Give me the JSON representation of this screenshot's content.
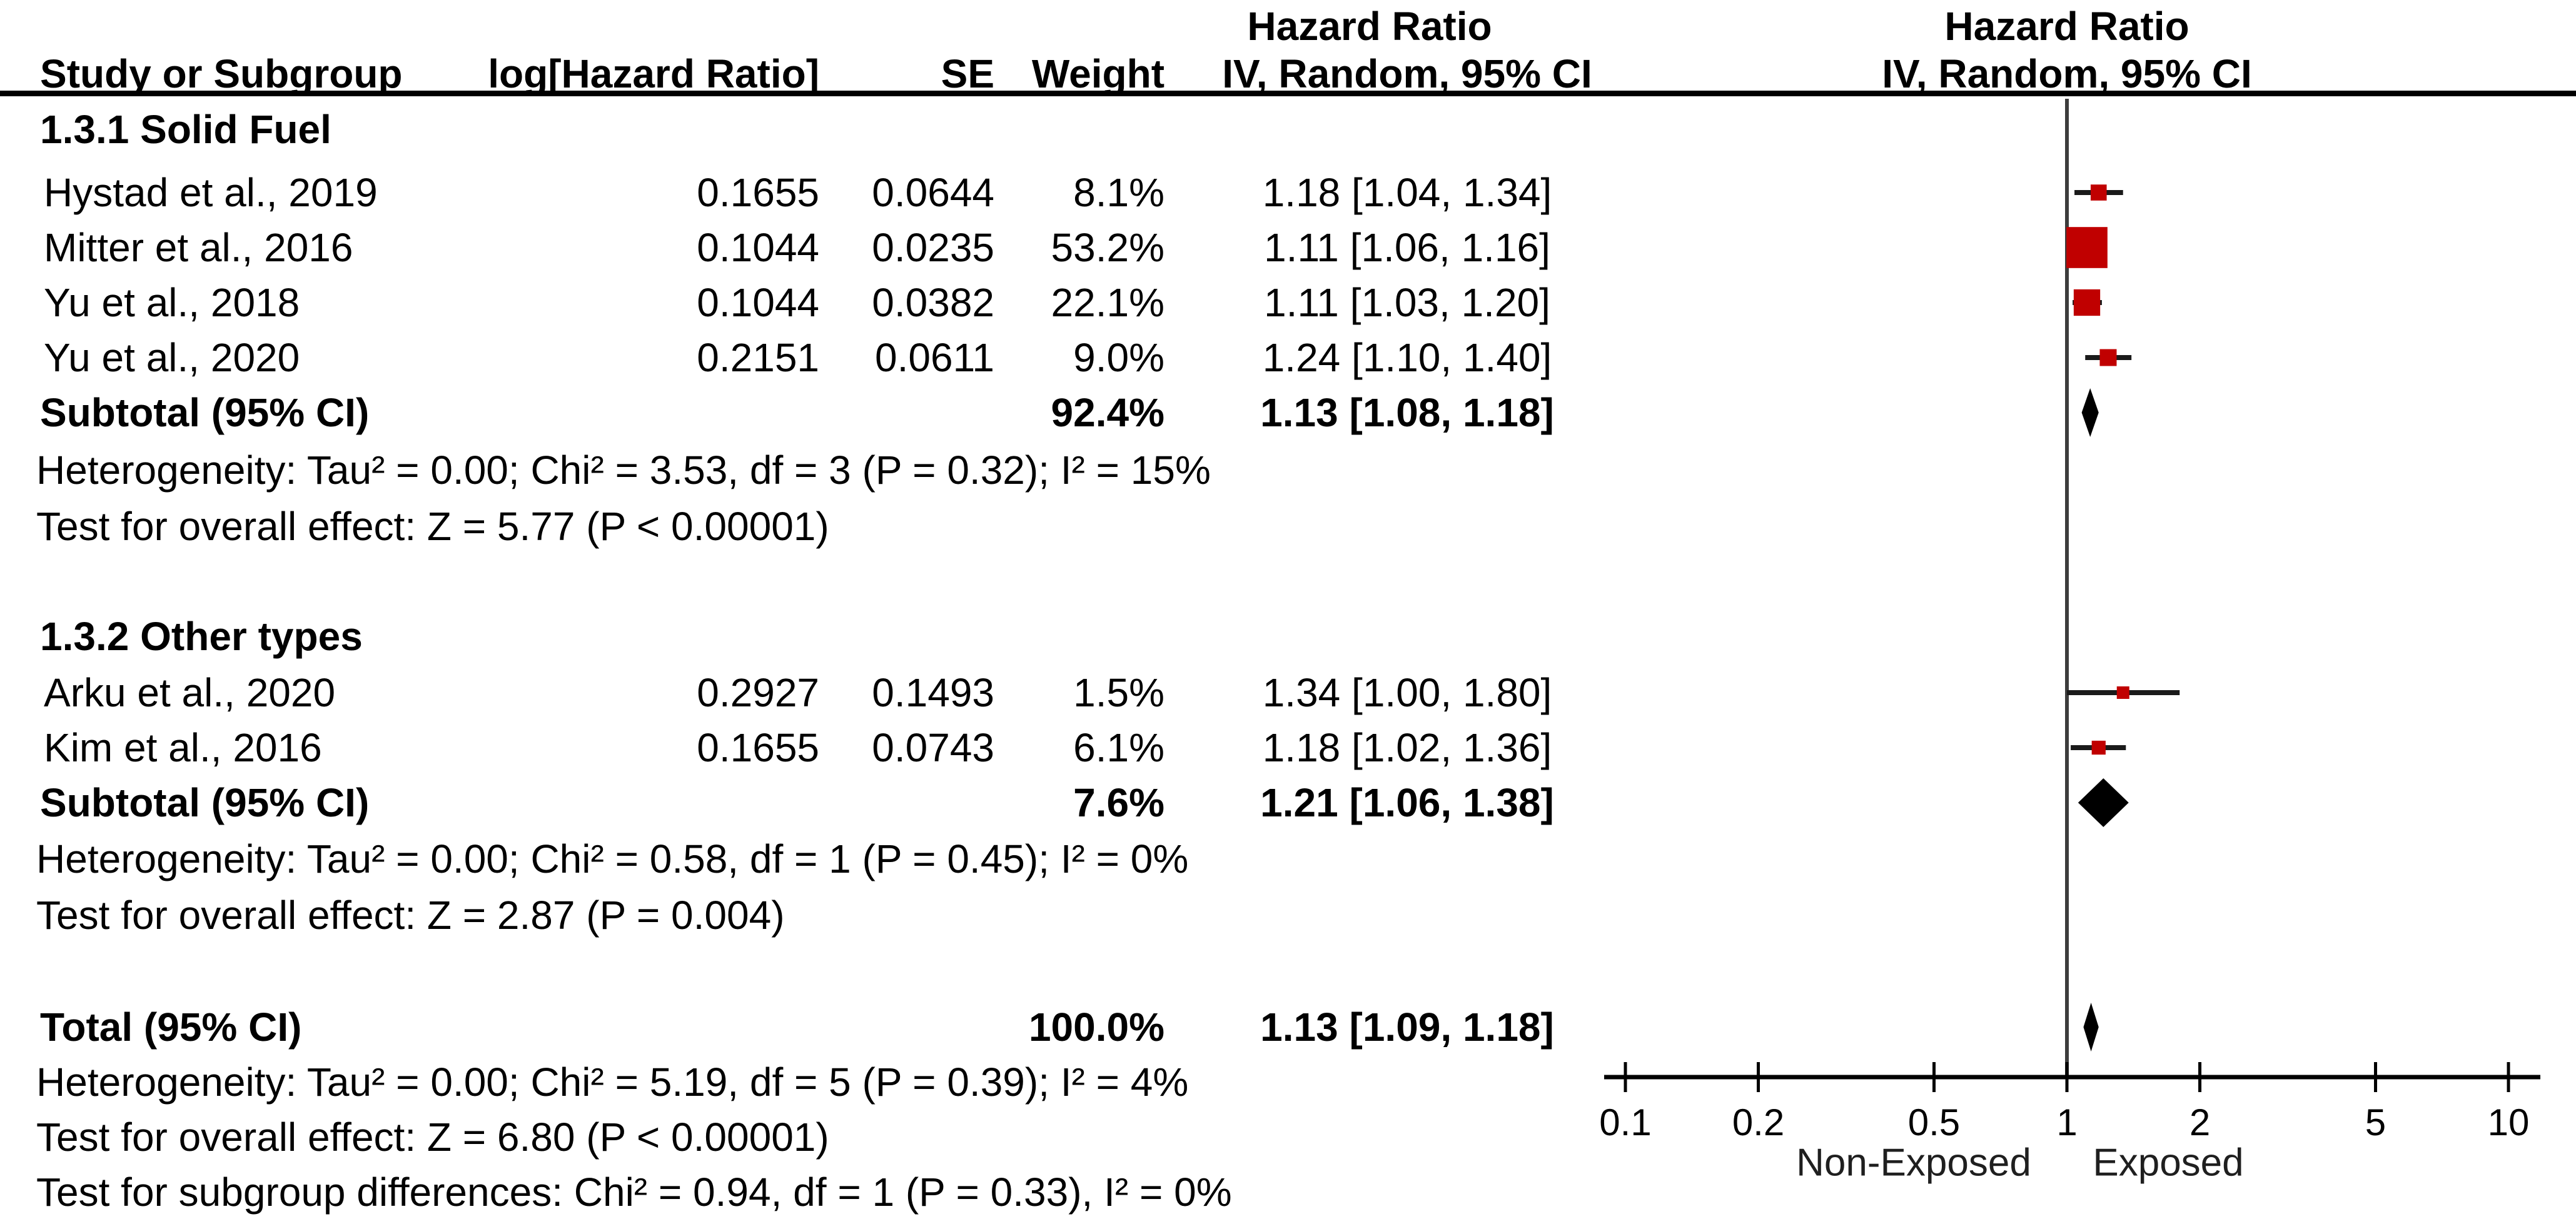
{
  "header": {
    "left_effect_title": "Hazard Ratio",
    "right_effect_title": "Hazard Ratio",
    "study_col": "Study or Subgroup",
    "loghr_col": "log[Hazard Ratio]",
    "se_col": "SE",
    "weight_col": "Weight",
    "ci_col": "IV, Random, 95% CI",
    "plot_ci_col": "IV, Random, 95% CI"
  },
  "chart_data": {
    "type": "forest",
    "effect_measure": "Hazard Ratio",
    "model": "IV, Random, 95% CI",
    "x_scale": "log10",
    "x_ticks": [
      "0.1",
      "0.2",
      "0.5",
      "1",
      "2",
      "5",
      "10"
    ],
    "x_range": [
      0.1,
      10
    ],
    "favours_left": "Non-Exposed",
    "favours_right": "Exposed",
    "marker_color": "#c00000",
    "diamond_color": "#000000",
    "line_color": "#1a1a1a",
    "subgroups": [
      {
        "title": "1.3.1 Solid Fuel",
        "studies": [
          {
            "name": "Hystad et al., 2019",
            "log_hr": "0.1655",
            "se": "0.0644",
            "weight": "8.1%",
            "weight_pct": 8.1,
            "ci_label": "1.18 [1.04, 1.34]",
            "hr": 1.18,
            "ci_low": 1.04,
            "ci_high": 1.34
          },
          {
            "name": "Mitter et al., 2016",
            "log_hr": "0.1044",
            "se": "0.0235",
            "weight": "53.2%",
            "weight_pct": 53.2,
            "ci_label": "1.11 [1.06, 1.16]",
            "hr": 1.11,
            "ci_low": 1.06,
            "ci_high": 1.16
          },
          {
            "name": "Yu et al., 2018",
            "log_hr": "0.1044",
            "se": "0.0382",
            "weight": "22.1%",
            "weight_pct": 22.1,
            "ci_label": "1.11 [1.03, 1.20]",
            "hr": 1.11,
            "ci_low": 1.03,
            "ci_high": 1.2
          },
          {
            "name": "Yu et al., 2020",
            "log_hr": "0.2151",
            "se": "0.0611",
            "weight": "9.0%",
            "weight_pct": 9.0,
            "ci_label": "1.24 [1.10, 1.40]",
            "hr": 1.24,
            "ci_low": 1.1,
            "ci_high": 1.4
          }
        ],
        "subtotal": {
          "label": "Subtotal (95% CI)",
          "weight": "92.4%",
          "ci_label": "1.13 [1.08, 1.18]",
          "hr": 1.13,
          "ci_low": 1.08,
          "ci_high": 1.18
        },
        "heterogeneity": "Heterogeneity: Tau² = 0.00; Chi² = 3.53, df = 3 (P = 0.32); I² = 15%",
        "overall_effect": "Test for overall effect: Z = 5.77 (P < 0.00001)"
      },
      {
        "title": "1.3.2 Other types",
        "studies": [
          {
            "name": "Arku et al., 2020",
            "log_hr": "0.2927",
            "se": "0.1493",
            "weight": "1.5%",
            "weight_pct": 1.5,
            "ci_label": "1.34 [1.00, 1.80]",
            "hr": 1.34,
            "ci_low": 1.0,
            "ci_high": 1.8
          },
          {
            "name": "Kim et al., 2016",
            "log_hr": "0.1655",
            "se": "0.0743",
            "weight": "6.1%",
            "weight_pct": 6.1,
            "ci_label": "1.18 [1.02, 1.36]",
            "hr": 1.18,
            "ci_low": 1.02,
            "ci_high": 1.36
          }
        ],
        "subtotal": {
          "label": "Subtotal (95% CI)",
          "weight": "7.6%",
          "ci_label": "1.21 [1.06, 1.38]",
          "hr": 1.21,
          "ci_low": 1.06,
          "ci_high": 1.38
        },
        "heterogeneity": "Heterogeneity: Tau² = 0.00; Chi² = 0.58, df = 1 (P = 0.45); I² = 0%",
        "overall_effect": "Test for overall effect: Z = 2.87 (P = 0.004)"
      }
    ],
    "total": {
      "label": "Total (95% CI)",
      "weight": "100.0%",
      "ci_label": "1.13 [1.09, 1.18]",
      "hr": 1.13,
      "ci_low": 1.09,
      "ci_high": 1.18
    },
    "footnotes": {
      "heterogeneity": "Heterogeneity: Tau² = 0.00; Chi² = 5.19, df = 5 (P = 0.39); I² = 4%",
      "overall_effect": "Test for overall effect: Z = 6.80 (P < 0.00001)",
      "subgroup_differences": "Test for subgroup differences: Chi² = 0.94, df = 1 (P = 0.33), I² = 0%"
    }
  }
}
